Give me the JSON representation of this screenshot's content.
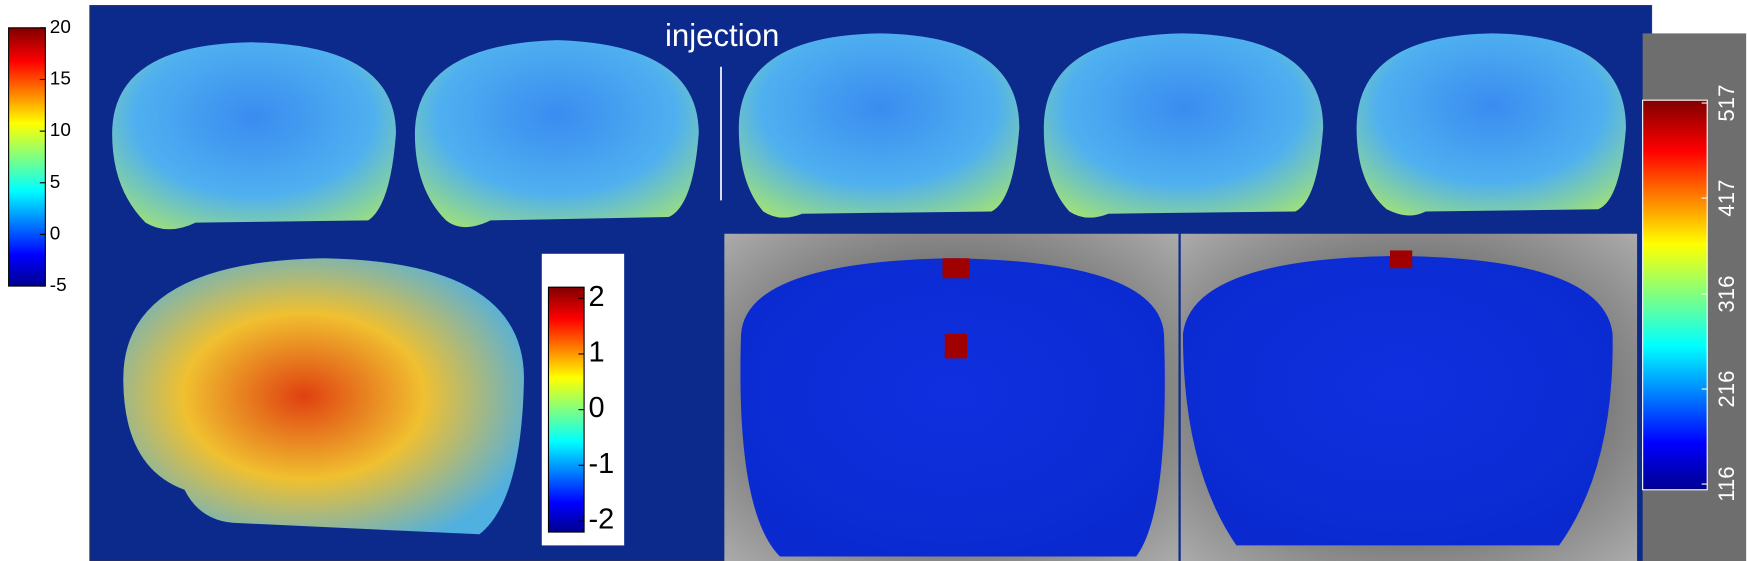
{
  "annotation": "injection",
  "colorbars": [
    {
      "lim": [
        -5,
        20
      ],
      "ticks": [
        20,
        15,
        10,
        5,
        0,
        -5
      ]
    },
    {
      "lim": [
        -2.2,
        2.2
      ],
      "ticks": [
        2,
        1,
        0,
        -1,
        -2
      ]
    },
    {
      "lim": [
        110,
        520
      ],
      "ticks": [
        517,
        417,
        316,
        216,
        116
      ]
    }
  ]
}
